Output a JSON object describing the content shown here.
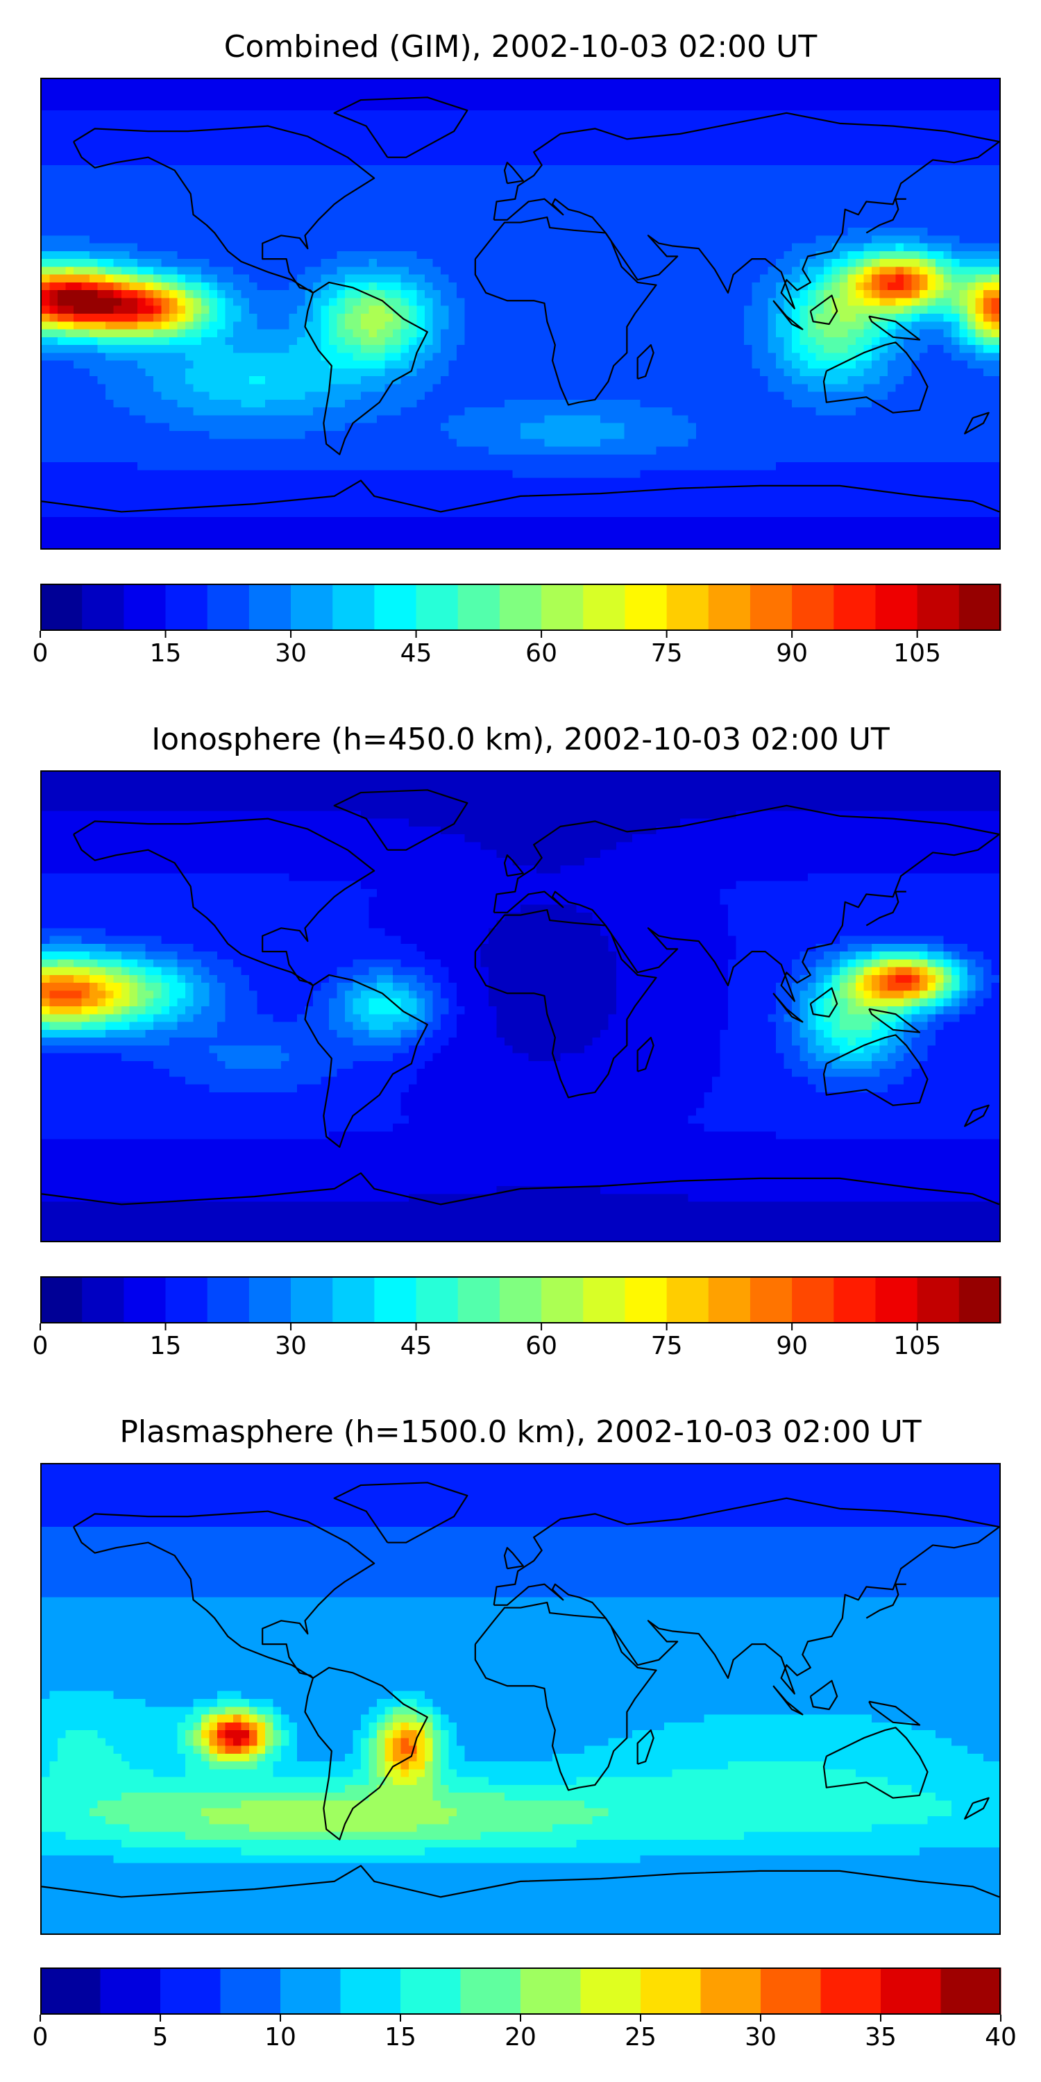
{
  "panels": [
    {
      "title": "Combined (GIM), 2002-10-03 02:00 UT",
      "colorbar": {
        "vmin": 0,
        "vmax": 115,
        "levels": 23,
        "ticks": [
          "0",
          "15",
          "30",
          "45",
          "60",
          "75",
          "90",
          "105"
        ],
        "tick_values": [
          0,
          15,
          30,
          45,
          60,
          75,
          90,
          105
        ]
      }
    },
    {
      "title": "Ionosphere  (h=450.0 km), 2002-10-03 02:00 UT",
      "colorbar": {
        "vmin": 0,
        "vmax": 115,
        "levels": 23,
        "ticks": [
          "0",
          "15",
          "30",
          "45",
          "60",
          "75",
          "90",
          "105"
        ],
        "tick_values": [
          0,
          15,
          30,
          45,
          60,
          75,
          90,
          105
        ]
      }
    },
    {
      "title": "Plasmasphere (h=1500.0 km), 2002-10-03 02:00 UT",
      "colorbar": {
        "vmin": 0,
        "vmax": 40,
        "levels": 16,
        "ticks": [
          "0",
          "5",
          "10",
          "15",
          "20",
          "25",
          "30",
          "35",
          "40"
        ],
        "tick_values": [
          0,
          5,
          10,
          15,
          20,
          25,
          30,
          35,
          40
        ]
      }
    }
  ],
  "chart_data": [
    {
      "type": "heatmap",
      "title": "Combined (GIM), 2002-10-03 02:00 UT",
      "projection": "equirectangular world map with coastlines",
      "colormap": "jet",
      "color_range": [
        0,
        115
      ],
      "background_value": 22,
      "features": [
        {
          "region": "eastern Pacific",
          "lon": -173,
          "lat": 6,
          "value": 108
        },
        {
          "region": "central Pacific",
          "lon": -140,
          "lat": 2,
          "value": 100
        },
        {
          "region": "western Pacific",
          "lon": 143,
          "lat": 12,
          "value": 95
        },
        {
          "region": "far western Pacific",
          "lon": 178,
          "lat": 2,
          "value": 98
        },
        {
          "region": "South America",
          "lon": -55,
          "lat": -2,
          "value": 72
        },
        {
          "region": "Southeast Asia",
          "lon": 118,
          "lat": -5,
          "value": 65
        },
        {
          "region": "polar regions",
          "lon": 0,
          "lat": 80,
          "value": 12
        }
      ]
    },
    {
      "type": "heatmap",
      "title": "Ionosphere  (h=450.0 km), 2002-10-03 02:00 UT",
      "projection": "equirectangular world map with coastlines",
      "colormap": "jet",
      "color_range": [
        0,
        115
      ],
      "background_value": 14,
      "features": [
        {
          "region": "eastern Pacific",
          "lon": -175,
          "lat": 5,
          "value": 88
        },
        {
          "region": "western Pacific",
          "lon": 145,
          "lat": 10,
          "value": 90
        },
        {
          "region": "Southeast Asia",
          "lon": 122,
          "lat": -3,
          "value": 65
        },
        {
          "region": "South America",
          "lon": -50,
          "lat": 0,
          "value": 48
        },
        {
          "region": "Africa / Atlantic",
          "lon": 10,
          "lat": 5,
          "value": 8
        }
      ]
    },
    {
      "type": "heatmap",
      "title": "Plasmasphere (h=1500.0 km), 2002-10-03 02:00 UT",
      "projection": "equirectangular world map with coastlines",
      "colormap": "jet",
      "color_range": [
        0,
        40
      ],
      "background_value": 10,
      "features": [
        {
          "region": "southeast Pacific",
          "lon": -107,
          "lat": -14,
          "value": 34
        },
        {
          "region": "Brazil",
          "lon": -43,
          "lat": -18,
          "value": 28
        },
        {
          "region": "southern ocean band",
          "lon": 0,
          "lat": -45,
          "value": 16
        },
        {
          "region": "northern high latitudes",
          "lon": 60,
          "lat": 65,
          "value": 4
        }
      ]
    }
  ]
}
